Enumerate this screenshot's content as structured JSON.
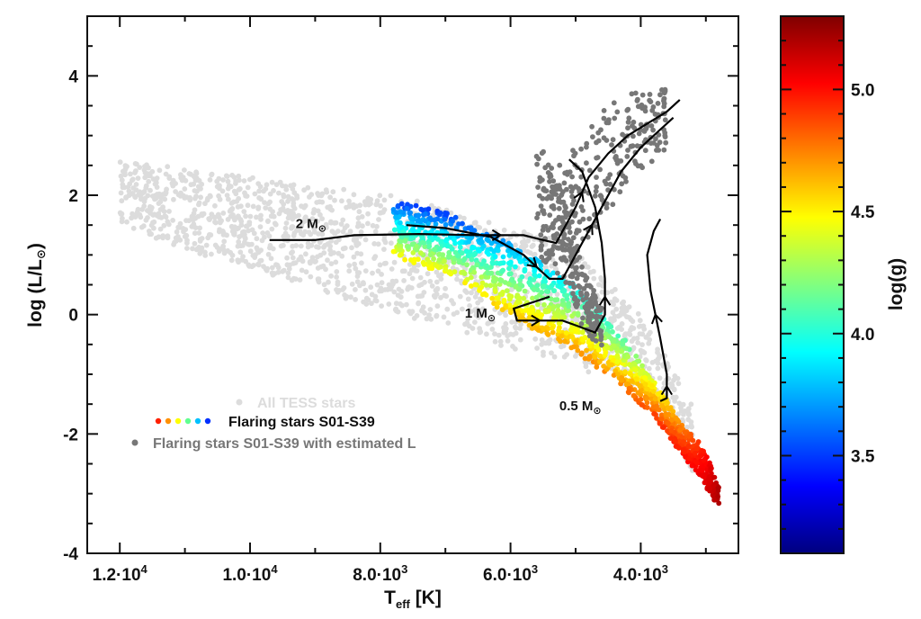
{
  "chart_data": {
    "type": "scatter",
    "title": "",
    "xlabel": {
      "main": "T",
      "sub": "eff",
      "rest": " [K]"
    },
    "ylabel": {
      "main": "log (L/L",
      "sym": "⊙",
      "rest": ")"
    },
    "x_axis": {
      "range": [
        12500,
        2500
      ],
      "reversed": true,
      "ticks": [
        {
          "value": 12000,
          "m": "1.2",
          "e": "4"
        },
        {
          "value": 10000,
          "m": "1.0",
          "e": "4"
        },
        {
          "value": 8000,
          "m": "8.0",
          "e": "3"
        },
        {
          "value": 6000,
          "m": "6.0",
          "e": "3"
        },
        {
          "value": 4000,
          "m": "4.0",
          "e": "3"
        }
      ]
    },
    "y_axis": {
      "range": [
        -4,
        5
      ],
      "ticks": [
        {
          "value": 4,
          "label": "4"
        },
        {
          "value": 2,
          "label": "2"
        },
        {
          "value": 0,
          "label": "0"
        },
        {
          "value": -2,
          "label": "-2"
        },
        {
          "value": -4,
          "label": "-4"
        }
      ]
    },
    "colorbar": {
      "label": "log(g)",
      "range": [
        3.1,
        5.3
      ],
      "ticks": [
        {
          "value": 5.0,
          "label": "5.0"
        },
        {
          "value": 4.5,
          "label": "4.5"
        },
        {
          "value": 4.0,
          "label": "4.0"
        },
        {
          "value": 3.5,
          "label": "3.5"
        }
      ],
      "colors": [
        "#00007f",
        "#0000ff",
        "#0080ff",
        "#00ffff",
        "#80ff80",
        "#ffff00",
        "#ff8000",
        "#ff0000",
        "#7f0000"
      ]
    },
    "legend": {
      "position": "bottom-left",
      "entries": [
        {
          "label": "All TESS stars",
          "color": "#dcdcdc"
        },
        {
          "label": "Flaring stars S01-S39",
          "color": "#111111",
          "dots": [
            "#ff2000",
            "#ff9000",
            "#ffff00",
            "#60ff90",
            "#00c0ff",
            "#0030ff"
          ]
        },
        {
          "label": "Flaring stars S01-S39 with estimated L",
          "color": "#777777"
        }
      ]
    },
    "series": [
      {
        "name": "All TESS stars",
        "color": "#dcdcdc",
        "regions": [
          {
            "x": [
              12000,
              11000,
              10000,
              9000,
              8000,
              7000,
              6000,
              5000,
              4000,
              3200
            ],
            "y_top": [
              2.6,
              2.45,
              2.3,
              2.15,
              2.0,
              1.8,
              1.5,
              1.1,
              0.0,
              -1.5
            ],
            "y_bot": [
              1.5,
              1.1,
              0.8,
              0.45,
              0.1,
              -0.25,
              -0.55,
              -0.85,
              -1.25,
              -2.6
            ]
          }
        ]
      },
      {
        "name": "Flaring stars S01-S39",
        "colored_by": "log(g)",
        "regions": [
          {
            "x": [
              7800,
              7000,
              6000,
              5000,
              4200,
              3800,
              3400,
              3000,
              2800
            ],
            "y_top": [
              1.9,
              1.7,
              1.2,
              0.5,
              -0.5,
              -1.1,
              -1.8,
              -2.3,
              -2.9
            ],
            "y_bot": [
              1.0,
              0.7,
              0.0,
              -0.6,
              -1.3,
              -1.7,
              -2.3,
              -2.9,
              -3.2
            ],
            "logg_top": [
              3.5,
              3.5,
              3.7,
              3.9,
              4.1,
              4.4,
              4.7,
              5.0,
              5.2
            ],
            "logg_bot": [
              4.5,
              4.5,
              4.6,
              4.7,
              4.8,
              4.9,
              5.0,
              5.1,
              5.2
            ]
          }
        ]
      },
      {
        "name": "Flaring stars S01-S39 with estimated L",
        "color": "#777777",
        "regions": [
          {
            "x": [
              5400,
              5000,
              4600,
              4200,
              3900,
              3600
            ],
            "y_top": [
              2.5,
              2.8,
              3.4,
              3.7,
              3.8,
              3.9
            ],
            "y_bot": [
              1.3,
              1.0,
              1.6,
              2.2,
              2.5,
              2.7
            ]
          },
          {
            "x": [
              5600,
              5200,
              4900,
              4600
            ],
            "y_top": [
              2.9,
              2.3,
              0.8,
              0.1
            ],
            "y_bot": [
              1.0,
              0.6,
              -0.2,
              -0.6
            ]
          }
        ]
      }
    ],
    "tracks": [
      {
        "label": {
          "m": "2 M",
          "sym": "⊙"
        },
        "label_at": [
          9300,
          1.45
        ],
        "points": [
          [
            9700,
            1.25
          ],
          [
            9000,
            1.25
          ],
          [
            8400,
            1.33
          ],
          [
            7400,
            1.35
          ],
          [
            6500,
            1.33
          ],
          [
            5800,
            1.33
          ],
          [
            5500,
            1.25
          ],
          [
            5300,
            1.2
          ],
          [
            5200,
            1.4
          ],
          [
            5000,
            1.8
          ],
          [
            4800,
            2.3
          ],
          [
            4500,
            2.7
          ],
          [
            4200,
            3.0
          ],
          [
            3900,
            3.2
          ],
          [
            3600,
            3.4
          ],
          [
            3400,
            3.6
          ]
        ]
      },
      {
        "label": {
          "m": "1 M",
          "sym": "⊙"
        },
        "label_at": [
          6700,
          -0.05
        ],
        "points": [
          [
            7600,
            1.5
          ],
          [
            7000,
            1.45
          ],
          [
            6300,
            1.3
          ],
          [
            5800,
            1.0
          ],
          [
            5400,
            0.6
          ],
          [
            5200,
            0.6
          ],
          [
            5100,
            0.8
          ],
          [
            4900,
            1.2
          ],
          [
            4600,
            1.8
          ],
          [
            4300,
            2.4
          ],
          [
            4000,
            2.8
          ],
          [
            3700,
            3.1
          ],
          [
            3500,
            3.3
          ]
        ]
      },
      {
        "label": {
          "m": "1 M",
          "sym": "⊙"
        },
        "label_at": [
          6700,
          -0.05
        ],
        "points": [
          [
            5400,
            0.3
          ],
          [
            5950,
            0.1
          ],
          [
            5900,
            -0.1
          ],
          [
            5700,
            -0.1
          ],
          [
            5400,
            -0.1
          ],
          [
            5200,
            -0.1
          ],
          [
            4950,
            -0.2
          ],
          [
            4700,
            -0.3
          ],
          [
            4550,
            0.0
          ],
          [
            4550,
            0.6
          ],
          [
            4600,
            1.2
          ],
          [
            4700,
            1.8
          ],
          [
            4900,
            2.4
          ],
          [
            5100,
            2.6
          ]
        ]
      },
      {
        "label": {
          "m": "0.5 M",
          "sym": "⊙"
        },
        "label_at": [
          5250,
          -1.6
        ],
        "points": [
          [
            3700,
            -1.45
          ],
          [
            3600,
            -1.4
          ],
          [
            3600,
            -1.0
          ],
          [
            3700,
            -0.4
          ],
          [
            3850,
            0.4
          ],
          [
            3900,
            1.0
          ],
          [
            3800,
            1.4
          ],
          [
            3700,
            1.6
          ]
        ]
      }
    ]
  }
}
